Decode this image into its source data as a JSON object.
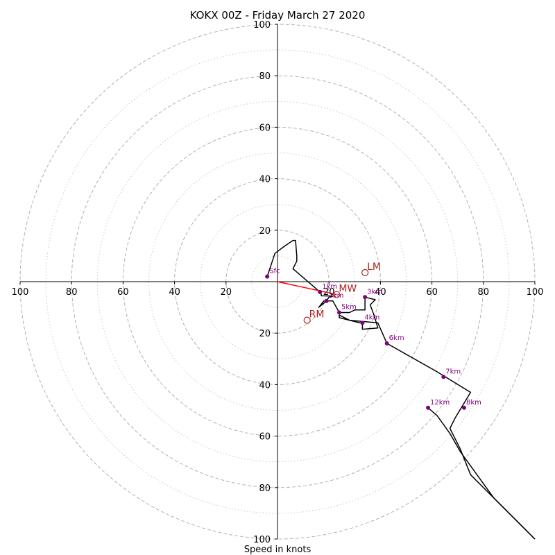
{
  "chart_data": {
    "type": "hodograph",
    "title": "KOKX 00Z - Friday March 27 2020",
    "xlabel": "Speed in knots",
    "range": 100,
    "rings_major": [
      20,
      40,
      60,
      80,
      100
    ],
    "rings_minor": [
      10,
      30,
      50,
      70,
      90
    ],
    "tick_labels": {
      "x_left": [
        "100",
        "80",
        "60",
        "40",
        "20"
      ],
      "x_right": [
        "20",
        "40",
        "60",
        "80",
        "100"
      ],
      "y_up": [
        "20",
        "40",
        "60",
        "80",
        "100"
      ],
      "y_down": [
        "20",
        "40",
        "60",
        "80",
        "100"
      ]
    },
    "trace": [
      [
        -4,
        2
      ],
      [
        -2,
        8
      ],
      [
        -1,
        11
      ],
      [
        3,
        14
      ],
      [
        6,
        16
      ],
      [
        7,
        16
      ],
      [
        7.5,
        10
      ],
      [
        7.5,
        8
      ],
      [
        6,
        5
      ],
      [
        13,
        -1
      ],
      [
        16.5,
        -4
      ],
      [
        17,
        -5
      ],
      [
        17,
        -5.5
      ],
      [
        21.5,
        -5.6
      ],
      [
        20,
        -6
      ],
      [
        19,
        -7.5
      ],
      [
        16,
        -10
      ],
      [
        18,
        -7.5
      ],
      [
        21.5,
        -7.5
      ],
      [
        24,
        -12
      ],
      [
        28,
        -12
      ],
      [
        30,
        -11
      ],
      [
        34,
        -11
      ],
      [
        34,
        -6
      ],
      [
        38,
        -7
      ],
      [
        36,
        -9
      ],
      [
        37.5,
        -13
      ],
      [
        39,
        -18
      ],
      [
        33,
        -18.5
      ],
      [
        33,
        -16
      ],
      [
        32,
        -16
      ],
      [
        24,
        -14
      ],
      [
        24,
        -13
      ],
      [
        28,
        -15
      ],
      [
        39,
        -16
      ],
      [
        42.5,
        -24
      ],
      [
        62,
        -35
      ],
      [
        75,
        -43
      ],
      [
        72,
        -48
      ],
      [
        69,
        -53
      ],
      [
        67,
        -57
      ],
      [
        68,
        -59
      ],
      [
        71,
        -65
      ],
      [
        75,
        -75
      ],
      [
        84,
        -84
      ],
      [
        100,
        -100
      ]
    ],
    "trace2": [
      [
        58.5,
        -49
      ],
      [
        62,
        -52
      ],
      [
        67,
        -59
      ],
      [
        71,
        -66
      ],
      [
        84,
        -84
      ],
      [
        100,
        -100
      ]
    ],
    "height_markers": [
      {
        "label": "Sfc",
        "u": -4,
        "v": 2
      },
      {
        "label": "1km",
        "u": 16.5,
        "v": -4
      },
      {
        "label": "2km",
        "u": 19,
        "v": -7.5
      },
      {
        "label": "3km",
        "u": 34,
        "v": -6
      },
      {
        "label": "4km",
        "u": 33,
        "v": -16
      },
      {
        "label": "5km",
        "u": 24,
        "v": -12
      },
      {
        "label": "6km",
        "u": 42.5,
        "v": -24
      },
      {
        "label": "7km",
        "u": 64.5,
        "v": -37
      },
      {
        "label": "8km",
        "u": 72.5,
        "v": -49
      },
      {
        "label": "12km",
        "u": 58.5,
        "v": -49
      }
    ],
    "storm_motion": [
      {
        "label": "LM",
        "u": 34,
        "v": 3.5
      },
      {
        "label": "MW",
        "u": 23,
        "v": -5
      },
      {
        "label": "RM",
        "u": 11.5,
        "v": -15
      }
    ],
    "shear_vector": {
      "from": [
        0,
        0
      ],
      "to": [
        23,
        -5
      ]
    },
    "colors": {
      "trace": "#000000",
      "marker": "#800080",
      "storm_motion": "#b22222",
      "shear": "#ff0000",
      "ring": "#b0b0b0"
    }
  }
}
